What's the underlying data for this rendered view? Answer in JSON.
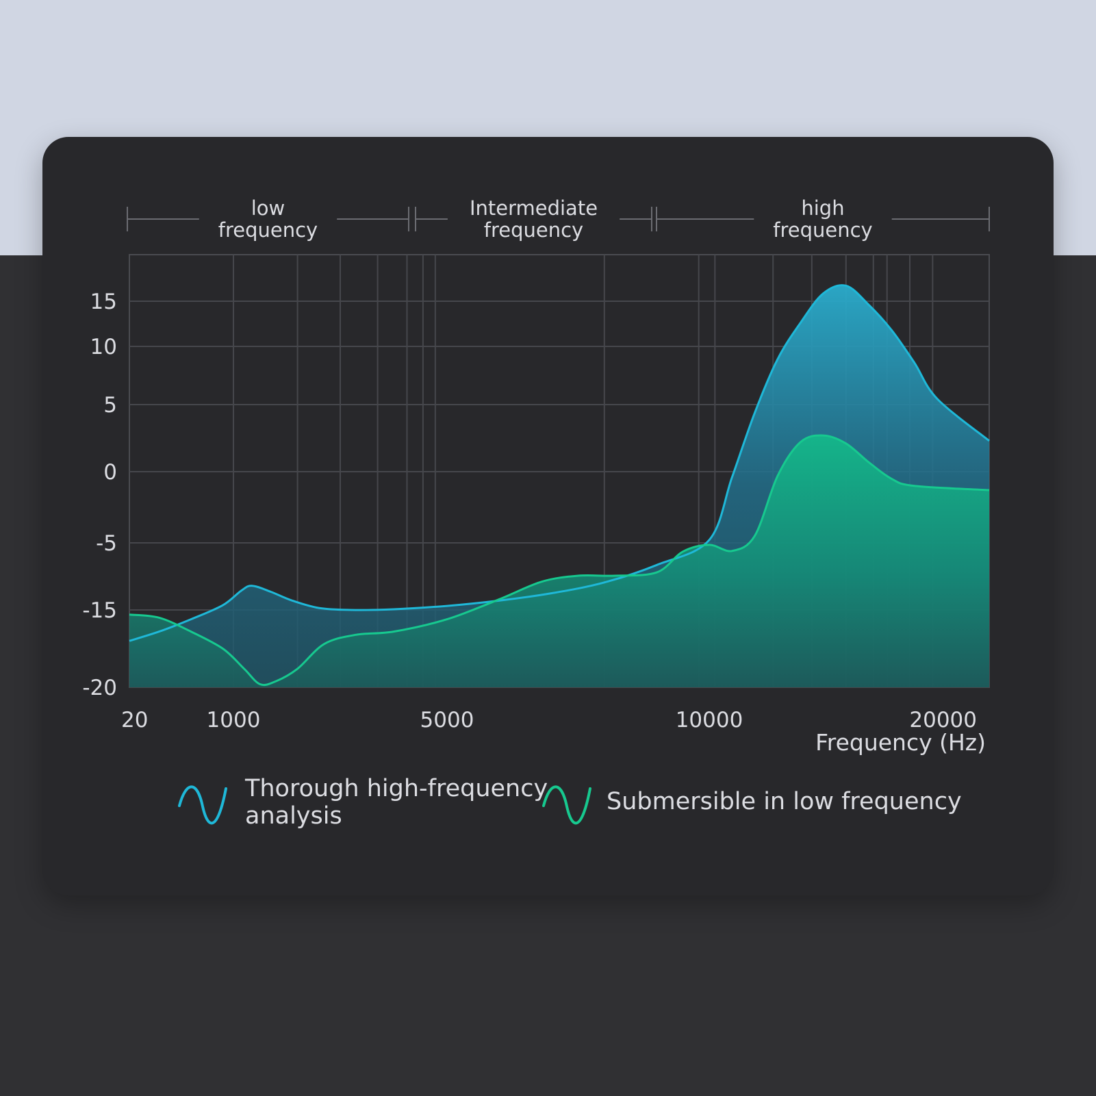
{
  "chart_data": {
    "type": "area",
    "bands": [
      {
        "label": [
          "low",
          "frequency"
        ],
        "from_tick": 0,
        "to_tick": 2
      },
      {
        "label": [
          "Intermediate",
          "frequency"
        ],
        "from_tick": 2,
        "to_tick": 3
      },
      {
        "label": [
          "high",
          "frequency"
        ],
        "from_tick": 3,
        "to_tick": 4
      }
    ],
    "x_ticks": [
      "20",
      "1000",
      "5000",
      "10000",
      "20000"
    ],
    "xlabel": "Frequency (Hz)",
    "ylabel": "",
    "y_ticks": [
      15,
      10,
      5,
      0,
      -5,
      -15,
      -20
    ],
    "ylim": [
      -20,
      18
    ],
    "grid": true,
    "legend_position": "bottom",
    "series": [
      {
        "name": "Thorough high-frequency analysis",
        "color": "#1fb8d8",
        "points": [
          [
            20,
            -17
          ],
          [
            300,
            -16.4
          ],
          [
            600,
            -15.6
          ],
          [
            900,
            -14.3
          ],
          [
            1150,
            -12.1
          ],
          [
            1350,
            -11.4
          ],
          [
            1700,
            -12.3
          ],
          [
            2100,
            -13.6
          ],
          [
            2600,
            -14.7
          ],
          [
            3200,
            -15
          ],
          [
            4000,
            -14.9
          ],
          [
            5000,
            -14.4
          ],
          [
            6000,
            -13.6
          ],
          [
            7000,
            -12.5
          ],
          [
            8000,
            -10.9
          ],
          [
            9000,
            -8.3
          ],
          [
            10000,
            -4.8
          ],
          [
            11000,
            -0.4
          ],
          [
            12000,
            4.4
          ],
          [
            13000,
            8.9
          ],
          [
            14000,
            12.6
          ],
          [
            15000,
            15.5
          ],
          [
            16000,
            16
          ],
          [
            17000,
            14.6
          ],
          [
            18000,
            11.8
          ],
          [
            19000,
            8.6
          ],
          [
            20000,
            5.5
          ],
          [
            21000,
            2.3
          ]
        ]
      },
      {
        "name": "Submersible in low frequency",
        "color": "#17c98f",
        "points": [
          [
            20,
            -15.3
          ],
          [
            300,
            -15.5
          ],
          [
            600,
            -16.4
          ],
          [
            900,
            -17.5
          ],
          [
            1200,
            -18.8
          ],
          [
            1500,
            -19.8
          ],
          [
            1800,
            -19.6
          ],
          [
            2200,
            -18.8
          ],
          [
            2700,
            -17.2
          ],
          [
            3300,
            -16.6
          ],
          [
            4000,
            -16.4
          ],
          [
            5000,
            -15.6
          ],
          [
            6000,
            -13.4
          ],
          [
            6800,
            -10.8
          ],
          [
            7500,
            -9.9
          ],
          [
            8200,
            -9.9
          ],
          [
            9000,
            -9.4
          ],
          [
            9500,
            -6.3
          ],
          [
            10000,
            -5.3
          ],
          [
            11000,
            -6.2
          ],
          [
            12000,
            -4.5
          ],
          [
            13000,
            -0.3
          ],
          [
            14000,
            2.2
          ],
          [
            15000,
            2.7
          ],
          [
            16000,
            2.1
          ],
          [
            17000,
            0.7
          ],
          [
            18000,
            -0.5
          ],
          [
            19000,
            -1
          ],
          [
            21000,
            -1.3
          ]
        ]
      }
    ]
  }
}
